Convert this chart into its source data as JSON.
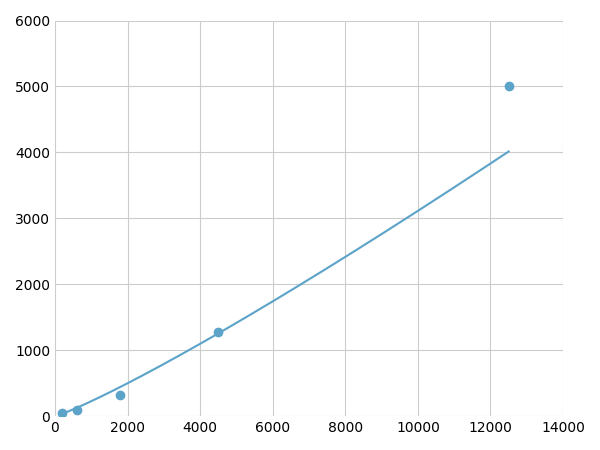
{
  "x_data": [
    200,
    600,
    1800,
    4500,
    12500
  ],
  "y_data": [
    50,
    100,
    320,
    1280,
    5000
  ],
  "line_color": "#5ba3c9",
  "marker_color": "#5ba3c9",
  "marker_size": 7,
  "linewidth": 1.5,
  "xlim": [
    0,
    14000
  ],
  "ylim": [
    0,
    6000
  ],
  "xticks": [
    0,
    2000,
    4000,
    6000,
    8000,
    10000,
    12000,
    14000
  ],
  "yticks": [
    0,
    1000,
    2000,
    3000,
    4000,
    5000,
    6000
  ],
  "grid_color": "#cccccc",
  "background_color": "#ffffff",
  "figsize": [
    6.0,
    4.5
  ],
  "dpi": 100
}
